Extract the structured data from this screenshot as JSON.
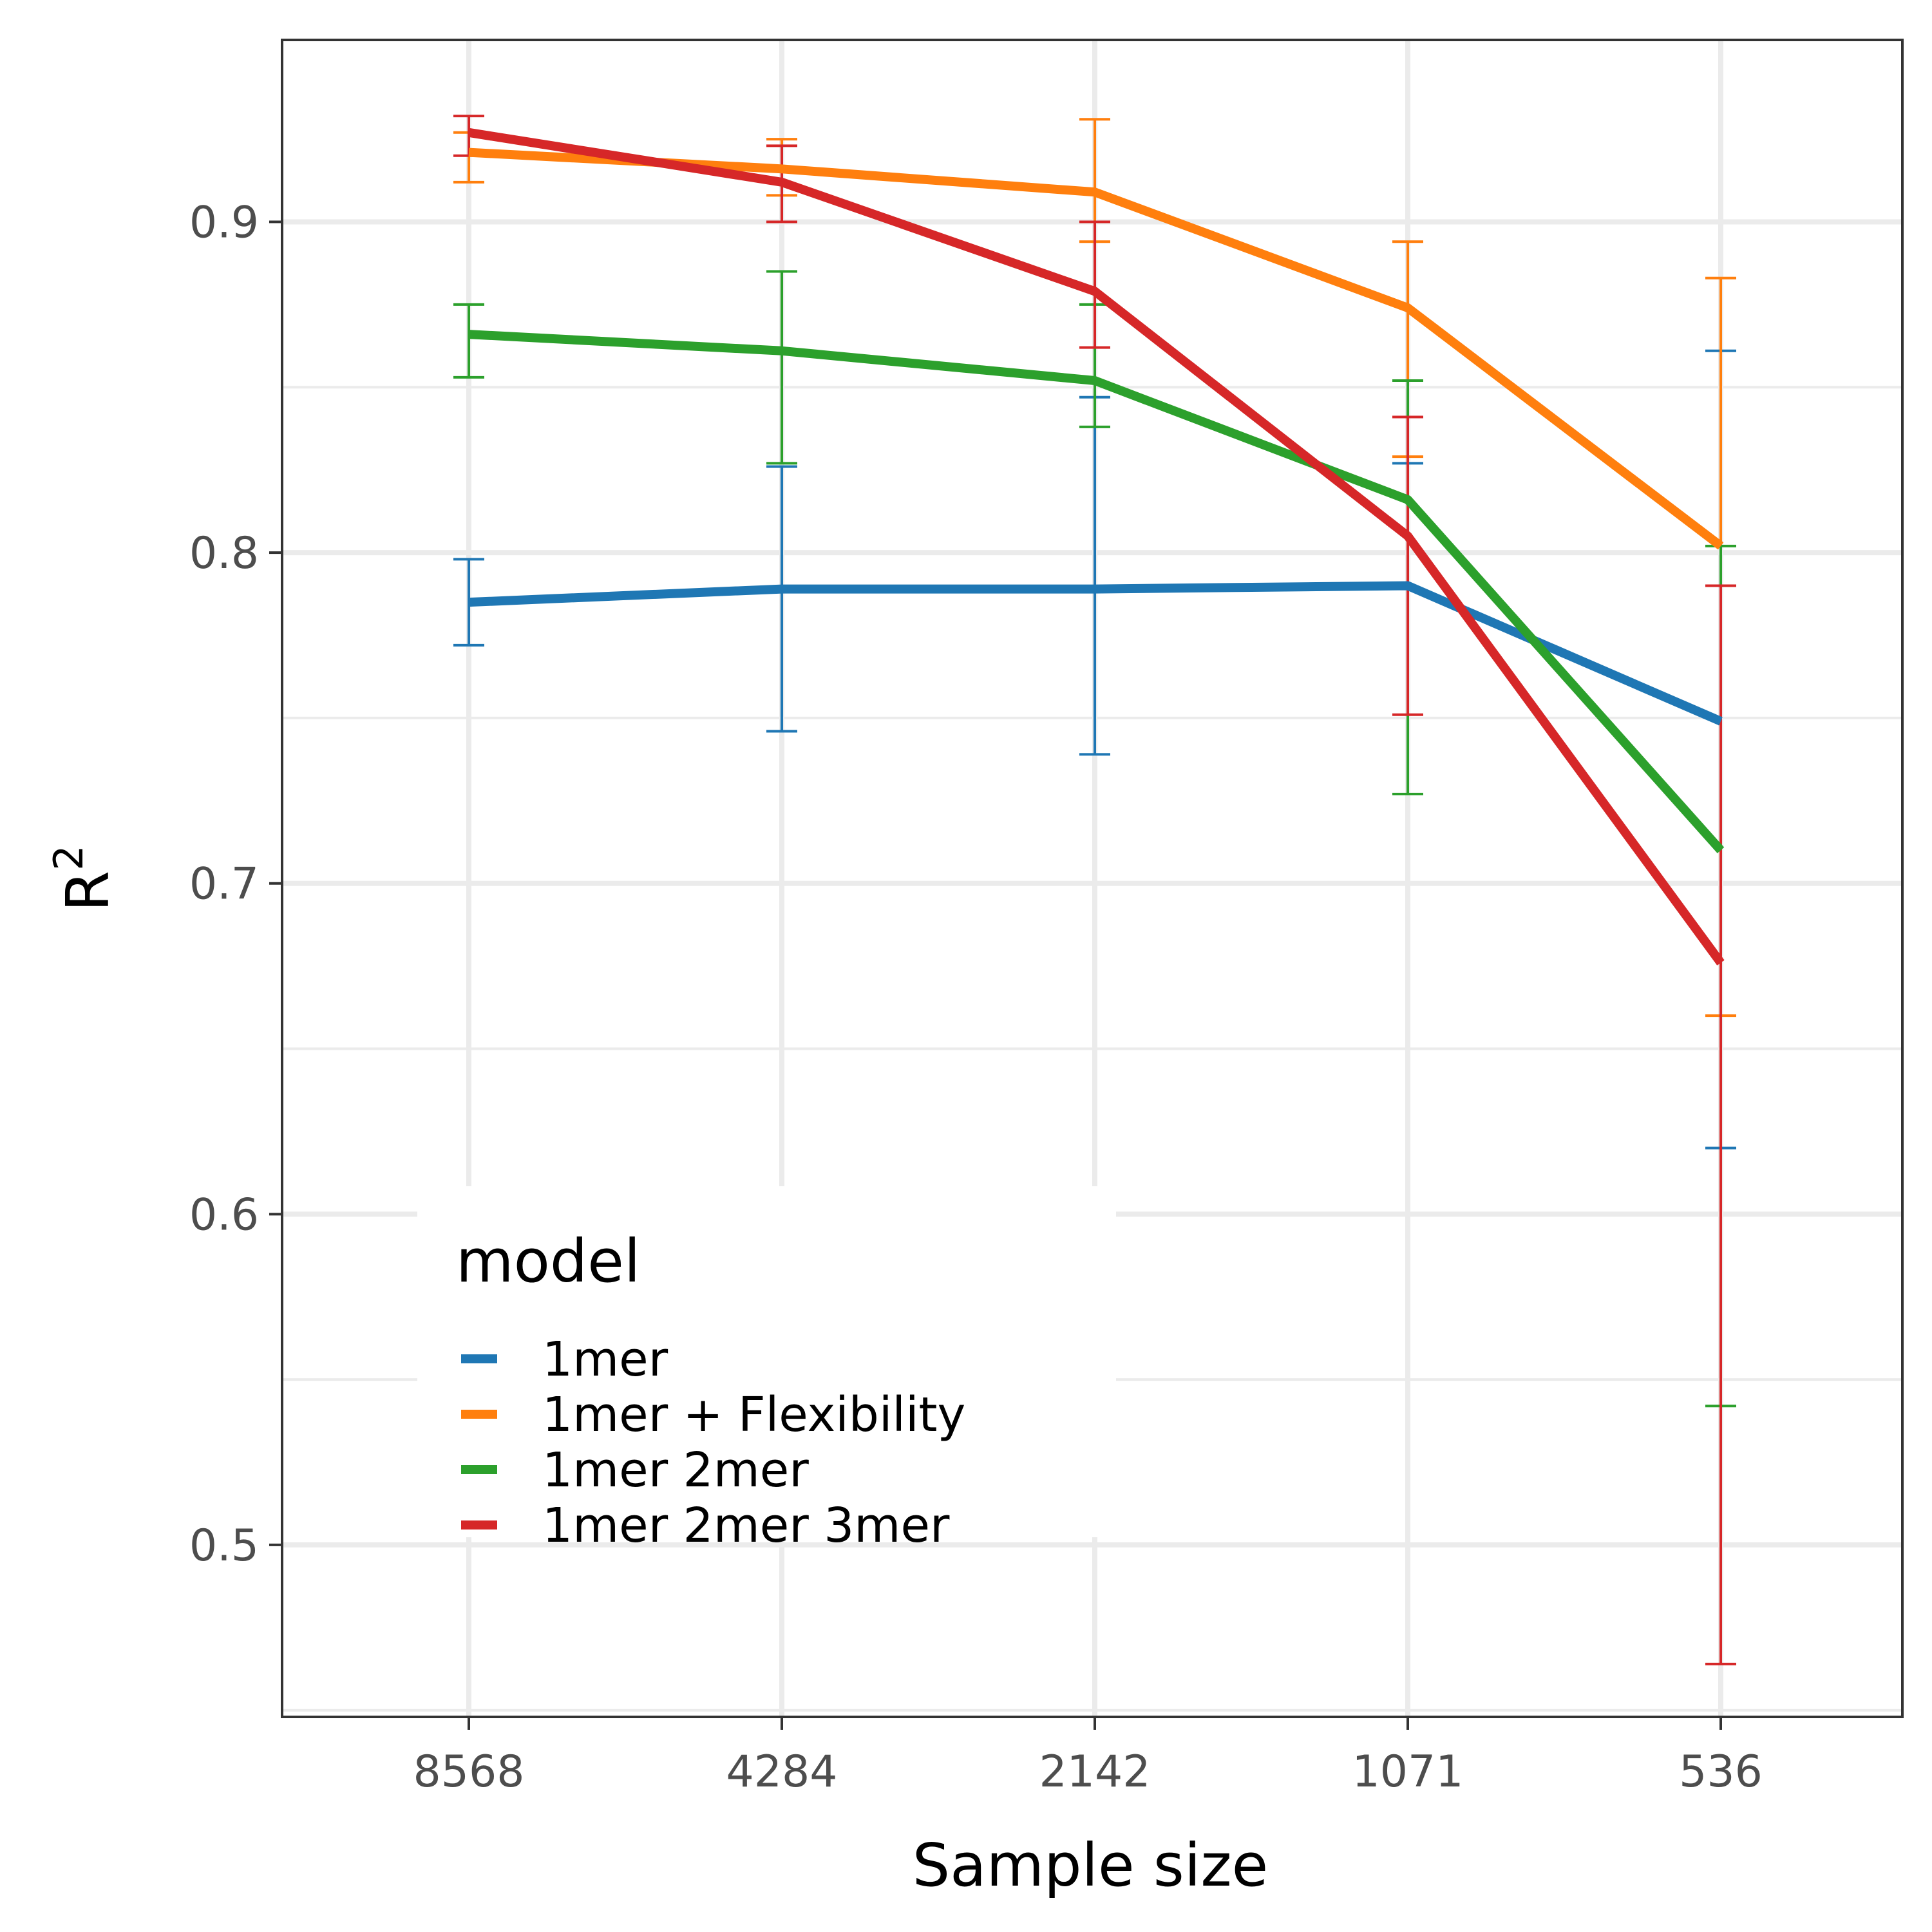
{
  "chart_data": {
    "type": "line",
    "xlabel": "Sample size",
    "ylabel_base": "R",
    "ylabel_sup": "2",
    "categories": [
      "8568",
      "4284",
      "2142",
      "1071",
      "536"
    ],
    "ylim": [
      0.448,
      0.955
    ],
    "y_ticks": [
      0.5,
      0.6,
      0.7,
      0.8,
      0.9
    ],
    "y_tick_labels": [
      "0.5",
      "0.6",
      "0.7",
      "0.8",
      "0.9"
    ],
    "y_minor_ticks": [
      0.45,
      0.55,
      0.65,
      0.75,
      0.85
    ],
    "grid": true,
    "legend": {
      "title": "model",
      "placement": "bottom-left inside"
    },
    "series": [
      {
        "name": "1mer",
        "color": "#1f77b4",
        "values": [
          0.785,
          0.789,
          0.789,
          0.79,
          0.749
        ],
        "lower": [
          0.772,
          0.746,
          0.739,
          0.727,
          0.62
        ],
        "upper": [
          0.798,
          0.826,
          0.847,
          0.827,
          0.861
        ]
      },
      {
        "name": "1mer + Flexibility",
        "color": "#ff7f0e",
        "values": [
          0.921,
          0.916,
          0.909,
          0.874,
          0.802
        ],
        "lower": [
          0.912,
          0.908,
          0.894,
          0.829,
          0.66
        ],
        "upper": [
          0.927,
          0.925,
          0.931,
          0.894,
          0.883
        ]
      },
      {
        "name": "1mer 2mer",
        "color": "#2ca02c",
        "values": [
          0.866,
          0.861,
          0.852,
          0.816,
          0.71
        ],
        "lower": [
          0.853,
          0.827,
          0.838,
          0.727,
          0.542
        ],
        "upper": [
          0.875,
          0.885,
          0.875,
          0.852,
          0.802
        ]
      },
      {
        "name": "1mer 2mer 3mer",
        "color": "#d62728",
        "values": [
          0.927,
          0.912,
          0.879,
          0.805,
          0.676
        ],
        "lower": [
          0.92,
          0.9,
          0.862,
          0.751,
          0.464
        ],
        "upper": [
          0.932,
          0.923,
          0.9,
          0.841,
          0.79
        ]
      }
    ]
  }
}
